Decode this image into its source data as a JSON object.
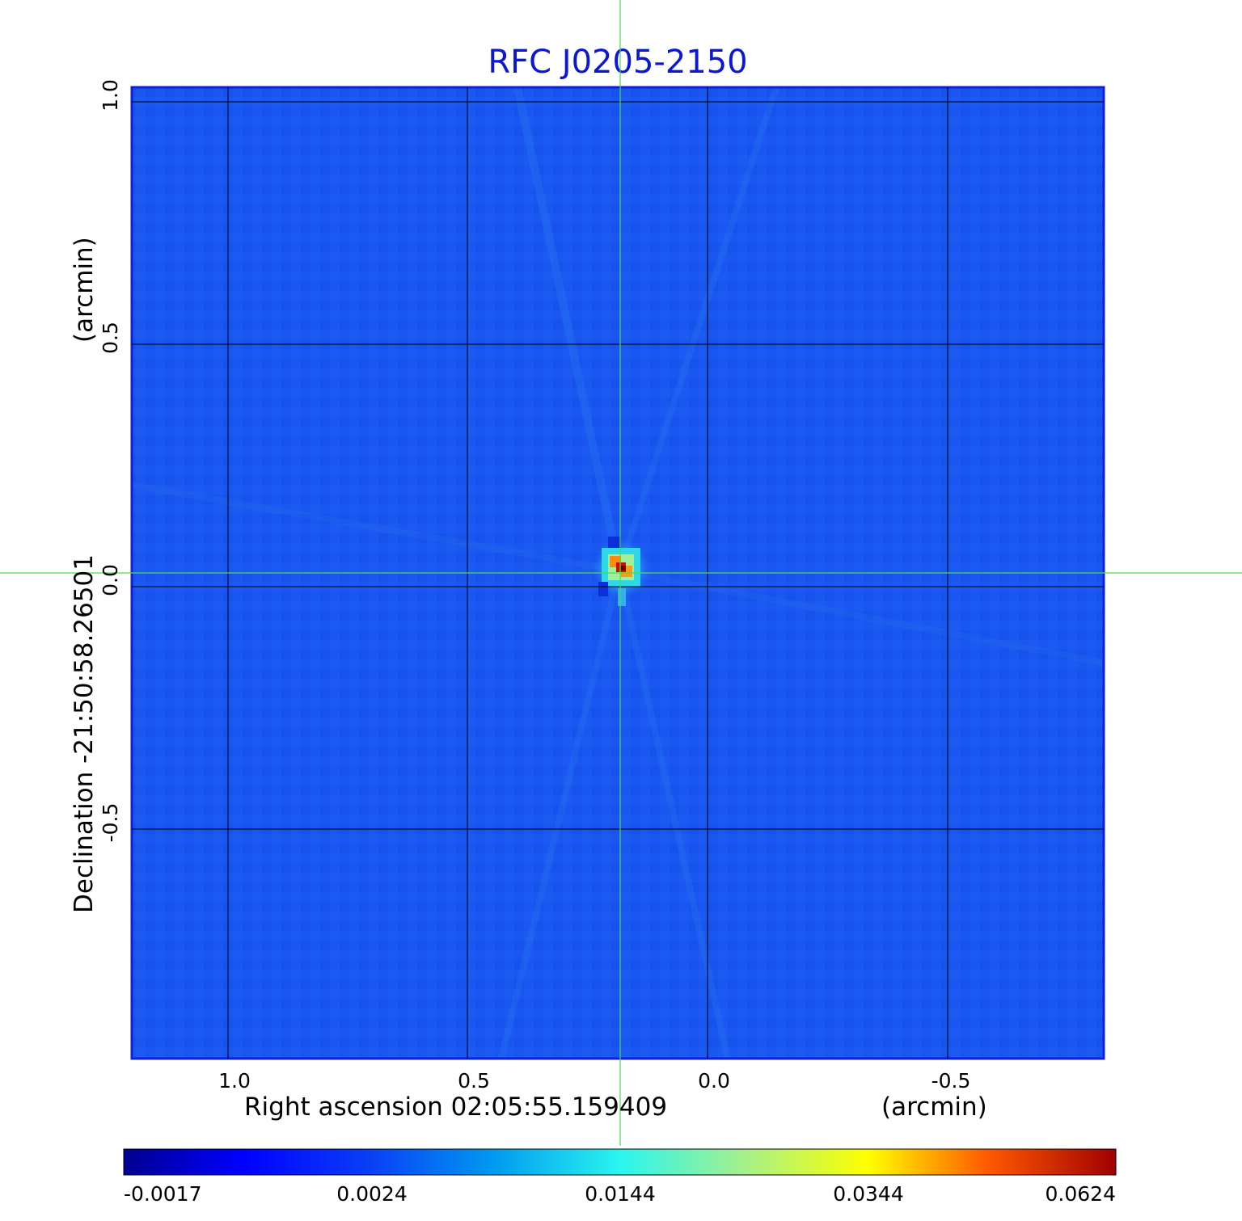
{
  "title": "RFC J0205-2150",
  "x_axis": {
    "label": "Right ascension  02:05:55.159409",
    "unit": "(arcmin)",
    "ticks": [
      "1.0",
      "0.5",
      "0.0",
      "-0.5"
    ]
  },
  "y_axis": {
    "label": "Declination  -21:50:58.26501",
    "unit": "(arcmin)",
    "ticks": [
      "1.0",
      "0.5",
      "0.0",
      "-0.5"
    ]
  },
  "colorbar": {
    "ticks": [
      "-0.0017",
      "0.0024",
      "0.0144",
      "0.0344",
      "0.0624"
    ],
    "colormap": "jet"
  },
  "colors": {
    "title": "#0b16d6",
    "background_field": "#1a56f0",
    "crosshair": "#4cdc4c",
    "grid": "#000000"
  }
}
